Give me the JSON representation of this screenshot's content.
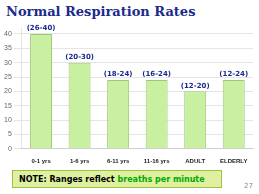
{
  "chart_data": {
    "type": "bar",
    "title": "Normal Respiration Rates",
    "categories": [
      "0-1 yrs",
      "1-6 yrs",
      "6-11 yrs",
      "11-16 yrs",
      "ADULT",
      "ELDERLY"
    ],
    "values": [
      40,
      30,
      24,
      24,
      20,
      24
    ],
    "value_labels": [
      "(26-40)",
      "(20-30)",
      "(18-24)",
      "(16-24)",
      "(12-20)",
      "(12-24)"
    ],
    "data_labels": true,
    "color": "#c8f0a0",
    "ylim": [
      0,
      42
    ],
    "yticks": [
      0,
      5,
      10,
      15,
      20,
      25,
      30,
      35,
      40
    ],
    "grid": true,
    "annotations": [
      "NOTE: Ranges reflect",
      "breaths per minute",
      "27"
    ]
  }
}
